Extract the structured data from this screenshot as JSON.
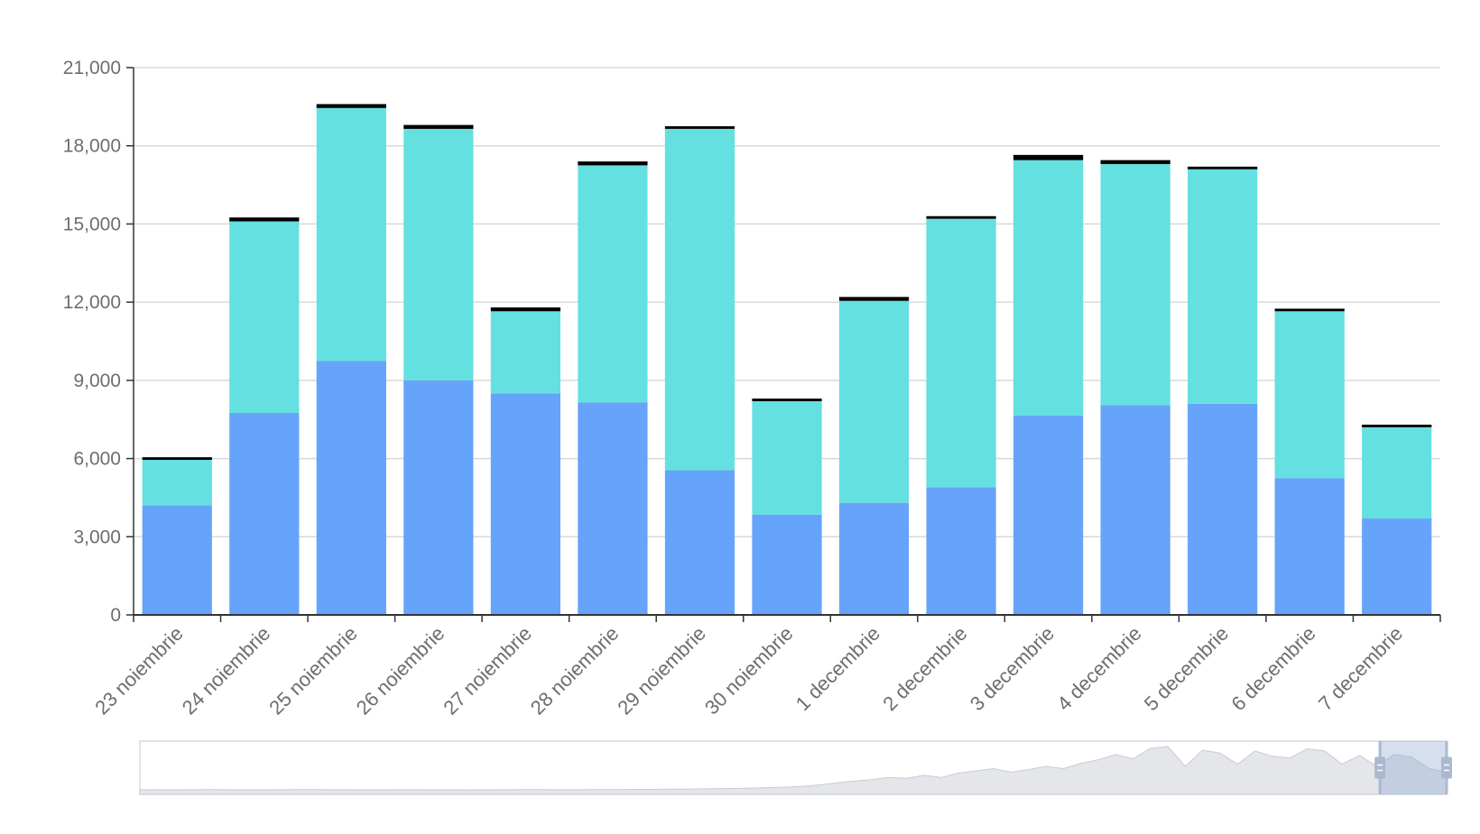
{
  "chart_data": {
    "type": "bar",
    "stacked": true,
    "categories": [
      "23 noiembrie",
      "24 noiembrie",
      "25 noiembrie",
      "26 noiembrie",
      "27 noiembrie",
      "28 noiembrie",
      "29 noiembrie",
      "30 noiembrie",
      "1 decembrie",
      "2 decembrie",
      "3 decembrie",
      "4 decembrie",
      "5 decembrie",
      "6 decembrie",
      "7 decembrie"
    ],
    "series": [
      {
        "color": "#66a3fa",
        "values": [
          4200,
          7750,
          9750,
          9000,
          8500,
          8150,
          5550,
          3850,
          4300,
          4900,
          7650,
          8050,
          8100,
          5250,
          3700
        ]
      },
      {
        "color": "#64e0e0",
        "values": [
          1750,
          7350,
          9700,
          9650,
          3150,
          9100,
          13100,
          4350,
          7750,
          10300,
          9800,
          9250,
          9000,
          6400,
          3500
        ]
      },
      {
        "color": "#000000",
        "values": [
          100,
          150,
          150,
          150,
          150,
          150,
          100,
          100,
          150,
          100,
          200,
          150,
          100,
          100,
          100
        ]
      }
    ],
    "yticks": [
      "0",
      "3,000",
      "6,000",
      "9,000",
      "12,000",
      "15,000",
      "18,000",
      "21,000"
    ],
    "ylim": [
      0,
      21000
    ],
    "grid": true,
    "legend": "none",
    "zoom_slider": {
      "selected_range": [
        0.949,
        1.0
      ],
      "overview": [
        0.02,
        0.022,
        0.021,
        0.023,
        0.024,
        0.022,
        0.021,
        0.02,
        0.022,
        0.025,
        0.024,
        0.023,
        0.022,
        0.021,
        0.02,
        0.022,
        0.023,
        0.021,
        0.02,
        0.019,
        0.021,
        0.022,
        0.024,
        0.025,
        0.023,
        0.022,
        0.024,
        0.026,
        0.028,
        0.03,
        0.032,
        0.035,
        0.04,
        0.045,
        0.05,
        0.06,
        0.07,
        0.08,
        0.1,
        0.13,
        0.18,
        0.22,
        0.25,
        0.3,
        0.28,
        0.35,
        0.3,
        0.4,
        0.45,
        0.5,
        0.42,
        0.48,
        0.55,
        0.5,
        0.62,
        0.7,
        0.82,
        0.72,
        0.96,
        1.0,
        0.55,
        0.92,
        0.85,
        0.6,
        0.9,
        0.78,
        0.74,
        0.95,
        0.9,
        0.6,
        0.8,
        0.55,
        0.82,
        0.76,
        0.5,
        0.42
      ]
    }
  }
}
